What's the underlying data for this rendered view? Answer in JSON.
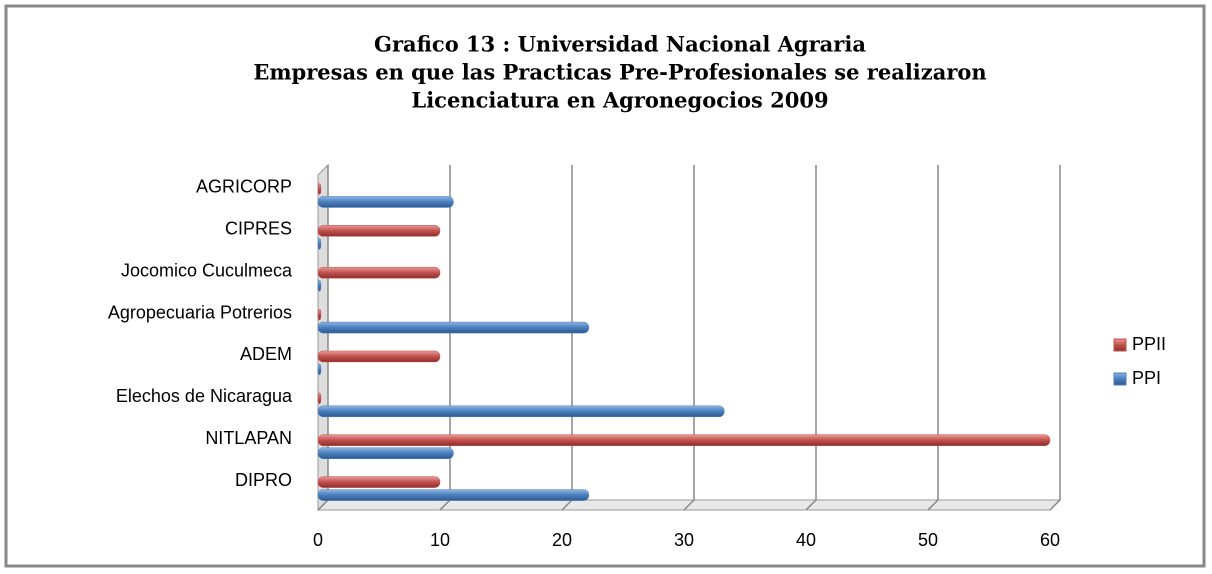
{
  "chart_data": {
    "type": "bar",
    "orientation": "horizontal",
    "title": [
      "Grafico 13 : Universidad Nacional Agraria",
      "Empresas en que las Practicas Pre-Profesionales se realizaron",
      "Licenciatura en Agronegocios 2009"
    ],
    "categories": [
      "DIPRO",
      "NITLAPAN",
      "Elechos de Nicaragua",
      "ADEM",
      "Agropecuaria Potrerios",
      "Jocomico Cuculmeca",
      "CIPRES",
      "AGRICORP"
    ],
    "series": [
      {
        "name": "PPI",
        "color": "#4a7ebb",
        "values": [
          22.2,
          11.1,
          33.3,
          0,
          22.2,
          0,
          0,
          11.1
        ]
      },
      {
        "name": "PPII",
        "color": "#c0504d",
        "values": [
          10,
          60,
          0,
          10,
          0,
          10,
          10,
          0
        ]
      }
    ],
    "xlim": [
      0,
      60
    ],
    "xticks": [
      0,
      10,
      20,
      30,
      40,
      50,
      60
    ],
    "grid": true,
    "legend": "right"
  }
}
